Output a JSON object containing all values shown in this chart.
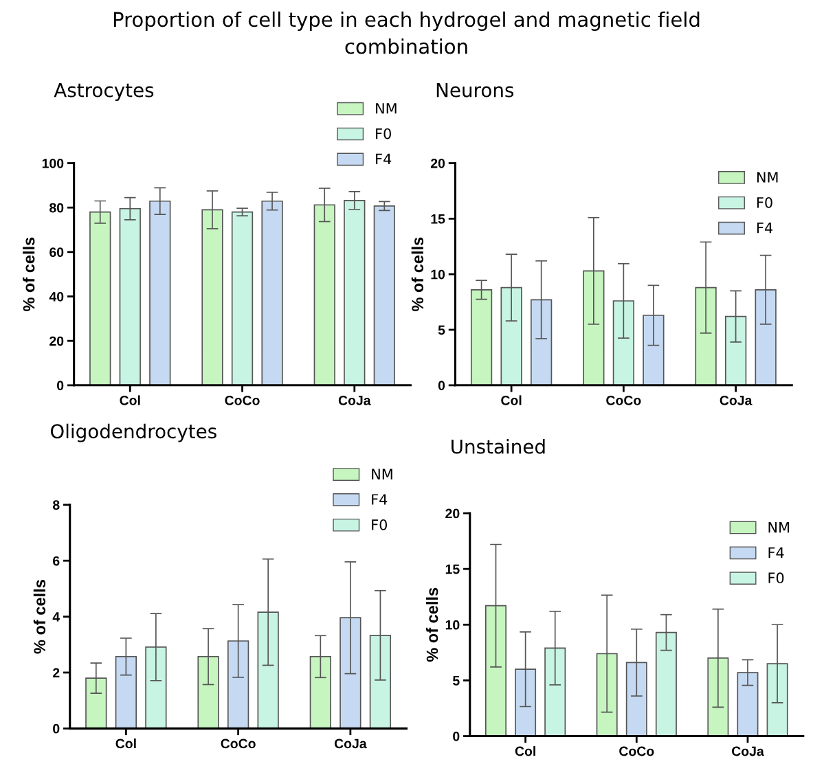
{
  "chart_data": [
    {
      "type": "bar",
      "title": "Astrocytes",
      "ylabel": "% of cells",
      "categories": [
        "Col",
        "CoCo",
        "CoJa"
      ],
      "ylim": [
        0,
        100
      ],
      "yticks": [
        0,
        20,
        40,
        60,
        80,
        100
      ],
      "grid": false,
      "legend": "top right",
      "series": [
        {
          "name": "NM",
          "color": "#c6f5c0",
          "values": [
            78.0,
            79.0,
            81.2
          ],
          "errors": [
            5,
            8.5,
            7.5
          ]
        },
        {
          "name": "F0",
          "color": "#c8f4e4",
          "values": [
            79.5,
            78.0,
            83.2
          ],
          "errors": [
            5,
            1.7,
            4
          ]
        },
        {
          "name": "F4",
          "color": "#c5d9f2",
          "values": [
            82.9,
            82.9,
            80.7
          ],
          "errors": [
            6,
            4,
            2
          ]
        }
      ]
    },
    {
      "type": "bar",
      "title": "Neurons",
      "ylabel": "% of cells",
      "categories": [
        "Col",
        "CoCo",
        "CoJa"
      ],
      "ylim": [
        0,
        20
      ],
      "yticks": [
        0,
        5,
        10,
        15,
        20
      ],
      "grid": false,
      "legend": "top right",
      "series": [
        {
          "name": "NM",
          "color": "#c6f5c0",
          "values": [
            8.6,
            10.3,
            8.8
          ],
          "errors": [
            0.85,
            4.8,
            4.1
          ]
        },
        {
          "name": "F0",
          "color": "#c8f4e4",
          "values": [
            8.8,
            7.6,
            6.2
          ],
          "errors": [
            3,
            3.35,
            2.3
          ]
        },
        {
          "name": "F4",
          "color": "#c5d9f2",
          "values": [
            7.7,
            6.3,
            8.6
          ],
          "errors": [
            3.5,
            2.7,
            3.1
          ]
        }
      ]
    },
    {
      "type": "bar",
      "title": "Oligodendrocytes",
      "ylabel": "% of cells",
      "categories": [
        "Col",
        "CoCo",
        "CoJa"
      ],
      "ylim": [
        0,
        8
      ],
      "yticks": [
        0,
        2,
        4,
        6,
        8
      ],
      "grid": false,
      "legend": "top right",
      "series": [
        {
          "name": "NM",
          "color": "#c6f5c0",
          "values": [
            1.8,
            2.57,
            2.57
          ],
          "errors": [
            0.54,
            1.0,
            0.75
          ]
        },
        {
          "name": "F4",
          "color": "#c5d9f2",
          "values": [
            2.57,
            3.13,
            3.96
          ],
          "errors": [
            0.66,
            1.3,
            2.0
          ]
        },
        {
          "name": "F0",
          "color": "#c8f4e4",
          "values": [
            2.91,
            4.16,
            3.33
          ],
          "errors": [
            1.2,
            1.9,
            1.6
          ]
        }
      ]
    },
    {
      "type": "bar",
      "title": "Unstained",
      "ylabel": "% of cells",
      "categories": [
        "Col",
        "CoCo",
        "CoJa"
      ],
      "ylim": [
        0,
        20
      ],
      "yticks": [
        0,
        5,
        10,
        15,
        20
      ],
      "grid": false,
      "legend": "top right",
      "series": [
        {
          "name": "NM",
          "color": "#c6f5c0",
          "values": [
            11.7,
            7.4,
            7.0
          ],
          "errors": [
            5.5,
            5.25,
            4.4
          ]
        },
        {
          "name": "F4",
          "color": "#c5d9f2",
          "values": [
            6.0,
            6.6,
            5.7
          ],
          "errors": [
            3.35,
            3.0,
            1.15
          ]
        },
        {
          "name": "F0",
          "color": "#c8f4e4",
          "values": [
            7.9,
            9.3,
            6.5
          ],
          "errors": [
            3.3,
            1.6,
            3.5
          ]
        }
      ]
    },
    {
      "type": "other",
      "title": "Proportion of cell type in each hydrogel and magnetic field\ncombination"
    }
  ]
}
